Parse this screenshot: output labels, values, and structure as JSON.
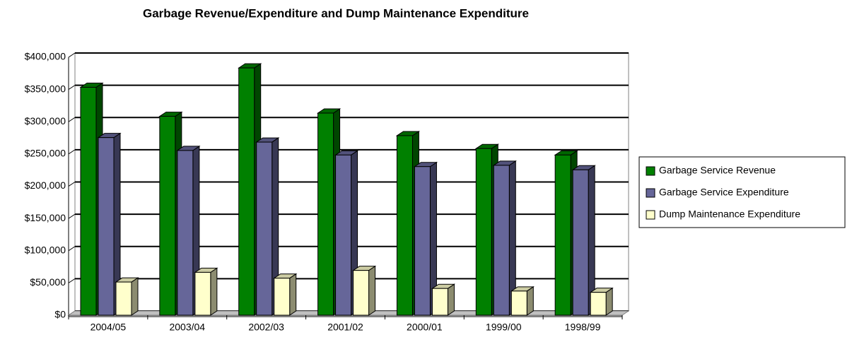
{
  "chart_data": {
    "type": "bar3d",
    "title": "Garbage Revenue/Expenditure and Dump Maintenance Expenditure",
    "categories": [
      "2004/05",
      "2003/04",
      "2002/03",
      "2001/02",
      "2000/01",
      "1999/00",
      "1998/99"
    ],
    "series": [
      {
        "name": "Garbage Service Revenue",
        "color": "#008000",
        "values": [
          360000,
          315000,
          390000,
          320000,
          285000,
          265000,
          255000
        ]
      },
      {
        "name": "Garbage Service Expenditure",
        "color": "#666699",
        "values": [
          282000,
          262000,
          275000,
          255000,
          237000,
          239000,
          232000
        ]
      },
      {
        "name": "Dump Maintenance Expenditure",
        "color": "#ffffcc",
        "values": [
          58000,
          73000,
          64000,
          76000,
          48000,
          44000,
          42000
        ]
      }
    ],
    "ylim": [
      0,
      400000
    ],
    "yticks": [
      {
        "value": 0,
        "label": "$0"
      },
      {
        "value": 50000,
        "label": "$50,000"
      },
      {
        "value": 100000,
        "label": "$100,000"
      },
      {
        "value": 150000,
        "label": "$150,000"
      },
      {
        "value": 200000,
        "label": "$200,000"
      },
      {
        "value": 250000,
        "label": "$250,000"
      },
      {
        "value": 300000,
        "label": "$300,000"
      },
      {
        "value": 350000,
        "label": "$350,000"
      },
      {
        "value": 400000,
        "label": "$400,000"
      }
    ],
    "grid": true,
    "legend": "right"
  }
}
